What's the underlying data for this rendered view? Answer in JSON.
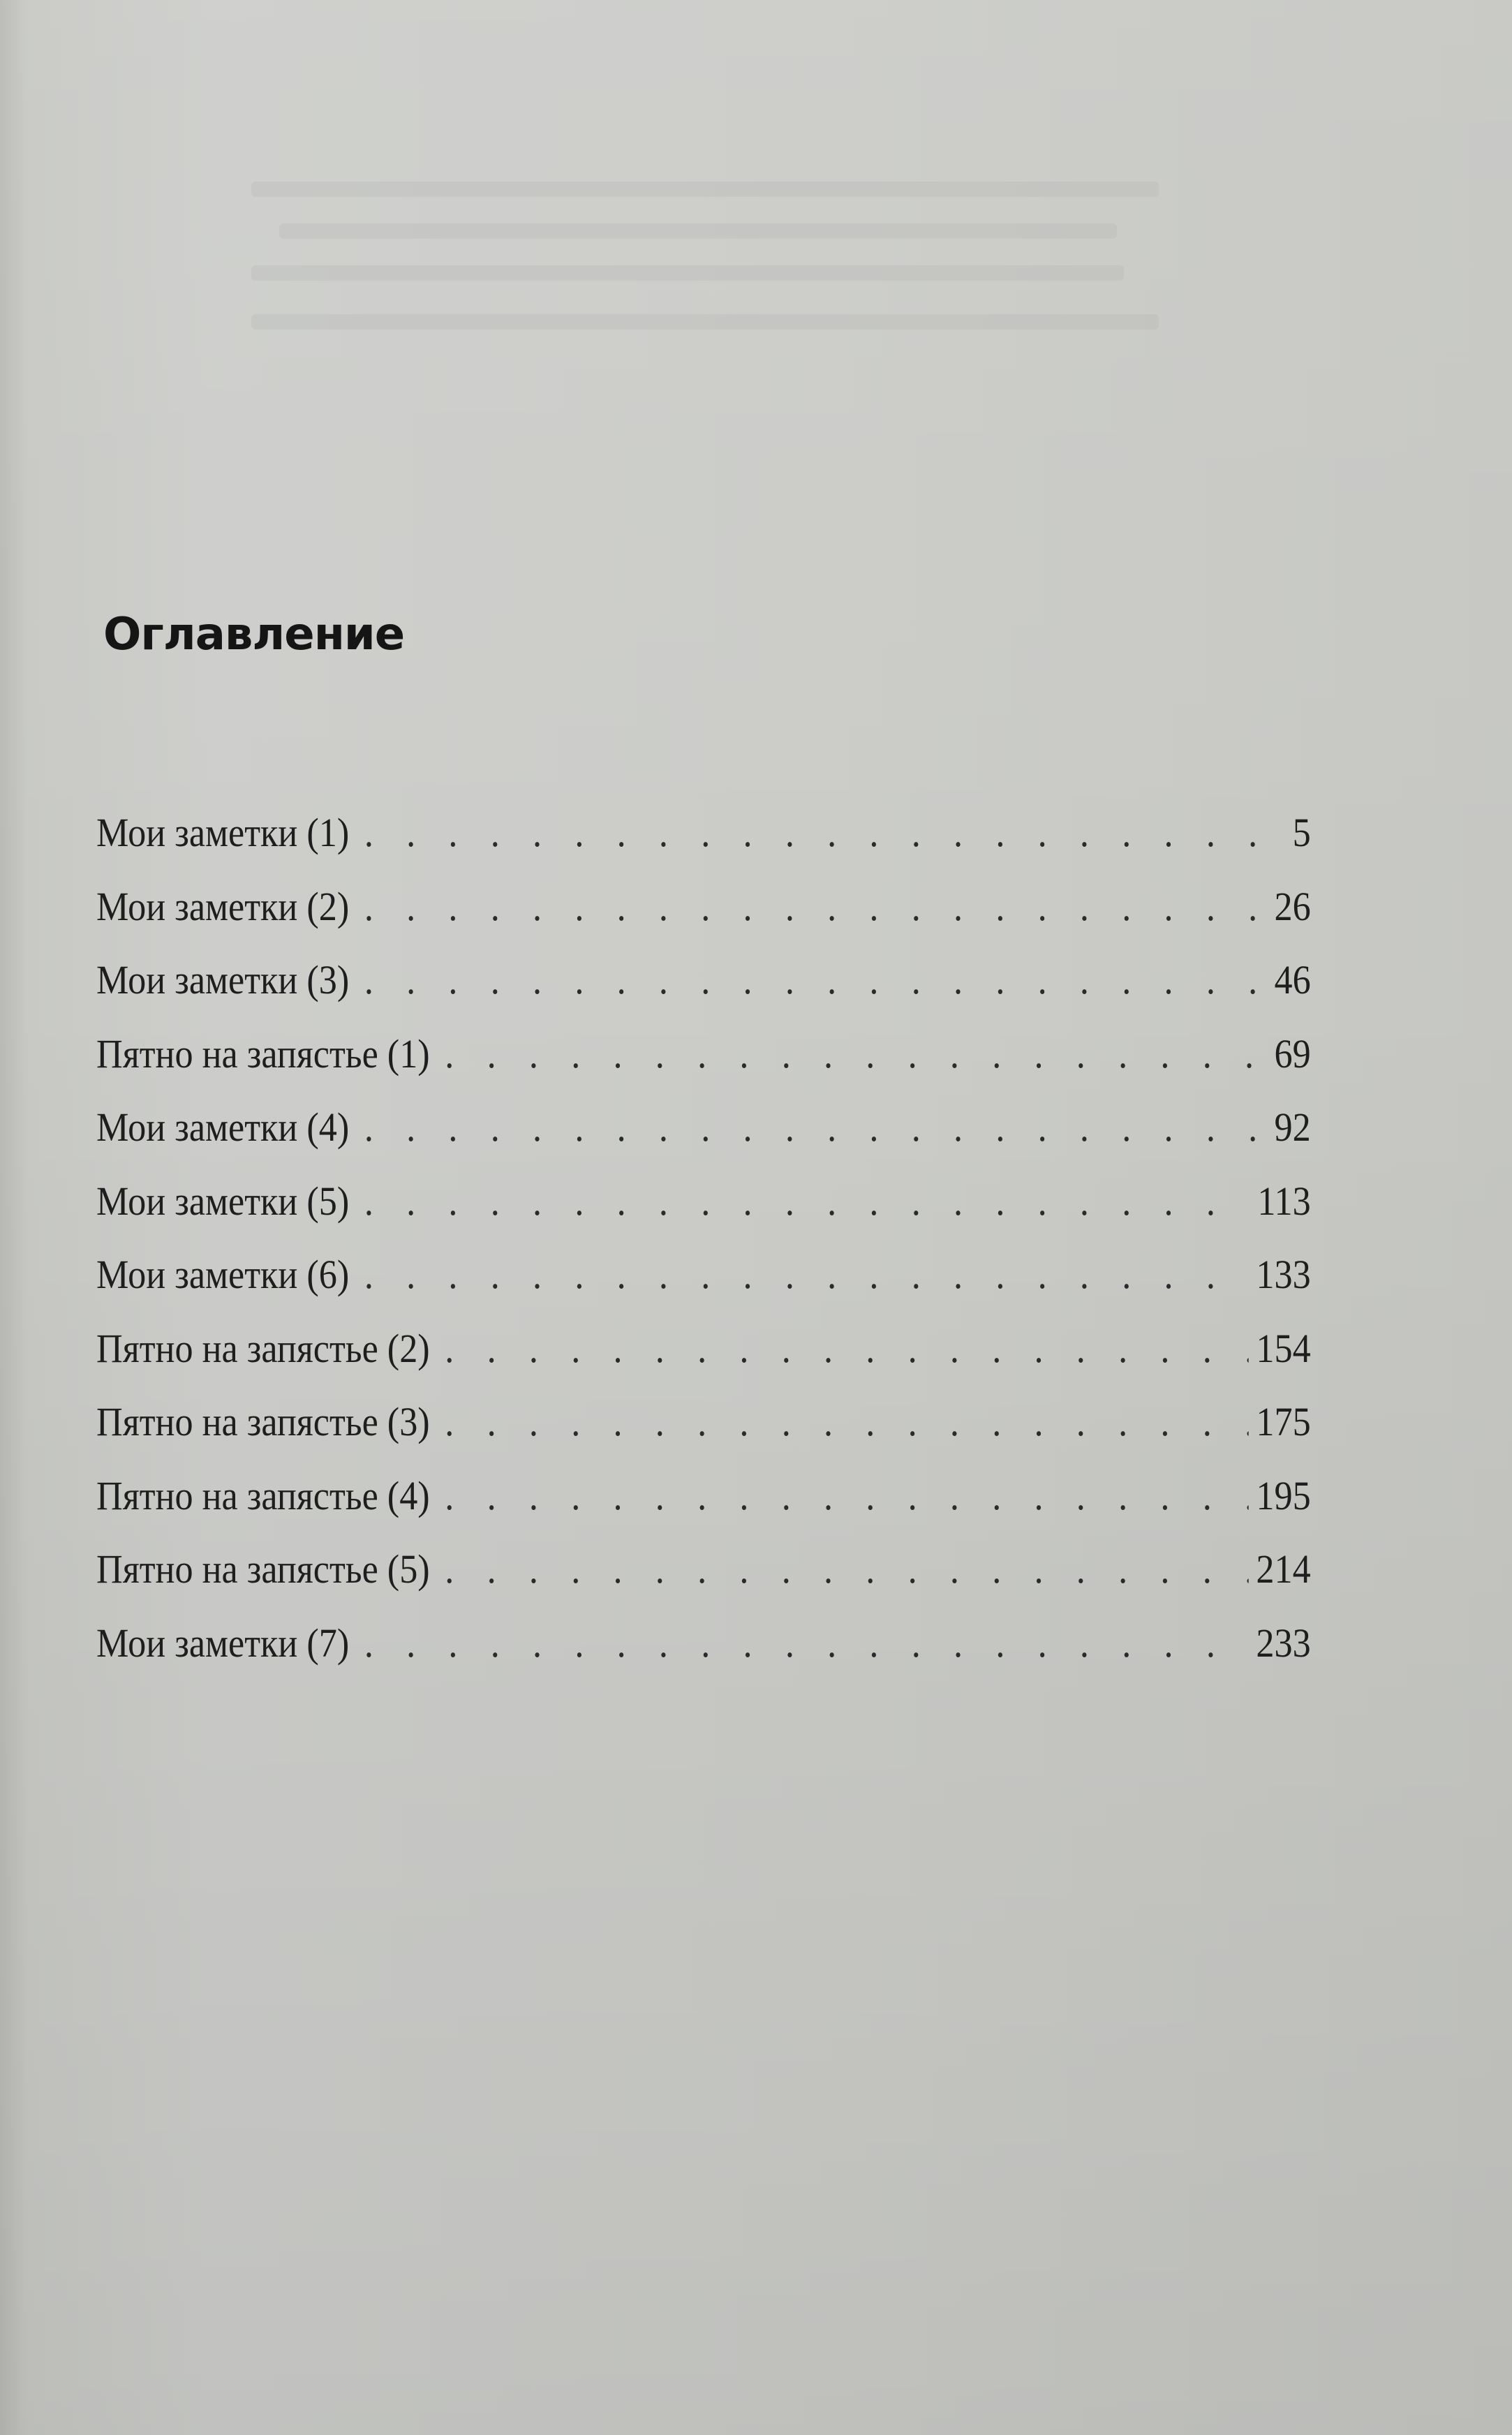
{
  "title": "Оглавление",
  "entries": [
    {
      "label": "Мои заметки (1)",
      "page": "5"
    },
    {
      "label": "Мои заметки (2)",
      "page": "26"
    },
    {
      "label": "Мои заметки (3)",
      "page": "46"
    },
    {
      "label": "Пятно на запястье (1)",
      "page": "69"
    },
    {
      "label": "Мои заметки (4)",
      "page": "92"
    },
    {
      "label": "Мои заметки (5)",
      "page": "113"
    },
    {
      "label": "Мои заметки (6)",
      "page": "133"
    },
    {
      "label": "Пятно на запястье (2)",
      "page": "154"
    },
    {
      "label": "Пятно на запястье (3)",
      "page": "175"
    },
    {
      "label": "Пятно на запястье (4)",
      "page": "195"
    },
    {
      "label": "Пятно на запястье (5)",
      "page": "214"
    },
    {
      "label": "Мои заметки (7)",
      "page": "233"
    }
  ]
}
